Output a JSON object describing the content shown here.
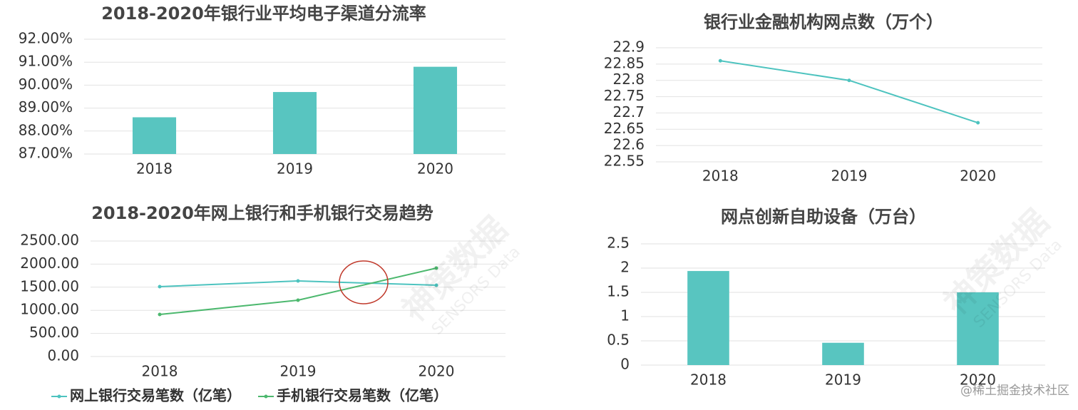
{
  "chart_data": [
    {
      "type": "bar",
      "title": "2018-2020年银行业平均电子渠道分流率",
      "categories": [
        "2018",
        "2019",
        "2020"
      ],
      "values": [
        88.6,
        89.7,
        90.8
      ],
      "color": "#58c5c0",
      "ylim": [
        87,
        92
      ],
      "yticks": [
        {
          "value": 87,
          "label": "87.00%"
        },
        {
          "value": 88,
          "label": "88.00%"
        },
        {
          "value": 89,
          "label": "89.00%"
        },
        {
          "value": 90,
          "label": "90.00%"
        },
        {
          "value": 91,
          "label": "91.00%"
        },
        {
          "value": 92,
          "label": "92.00%"
        }
      ],
      "grid": true
    },
    {
      "type": "line",
      "title": "银行业金融机构网点数（万个）",
      "categories": [
        "2018",
        "2019",
        "2020"
      ],
      "values": [
        22.86,
        22.8,
        22.67
      ],
      "color": "#4dc3bf",
      "ylim": [
        22.55,
        22.9
      ],
      "yticks": [
        22.55,
        22.6,
        22.65,
        22.7,
        22.75,
        22.8,
        22.85,
        22.9
      ],
      "grid": true
    },
    {
      "type": "line",
      "title": "2018-2020年网上银行和手机银行交易趋势",
      "categories": [
        "2018",
        "2019",
        "2020"
      ],
      "series": [
        {
          "name": "网上银行交易笔数（亿笔）",
          "color": "#4dc3bf",
          "values": [
            1512,
            1636,
            1543
          ]
        },
        {
          "name": "手机银行交易笔数（亿笔）",
          "color": "#4cb86e",
          "values": [
            910,
            1219,
            1914
          ]
        }
      ],
      "ylim": [
        0,
        2500
      ],
      "yticks": [
        {
          "value": 0,
          "label": "0.00"
        },
        {
          "value": 500,
          "label": "500.00"
        },
        {
          "value": 1000,
          "label": "1000.00"
        },
        {
          "value": 1500,
          "label": "1500.00"
        },
        {
          "value": 2000,
          "label": "2000.00"
        },
        {
          "value": 2500,
          "label": "2500.00"
        }
      ],
      "grid": true,
      "legend": "bottom"
    },
    {
      "type": "bar",
      "title": "网点创新自助设备（万台）",
      "categories": [
        "2018",
        "2019",
        "2020"
      ],
      "values": [
        1.94,
        0.46,
        1.5
      ],
      "color": "#58c5c0",
      "ylim": [
        0,
        2.5
      ],
      "yticks": [
        0,
        0.5,
        1,
        1.5,
        2,
        2.5
      ],
      "grid": true
    }
  ],
  "watermark": "神策数据",
  "watermark_sub": "SENSORS Data",
  "credit": "@稀土掘金技术社区"
}
